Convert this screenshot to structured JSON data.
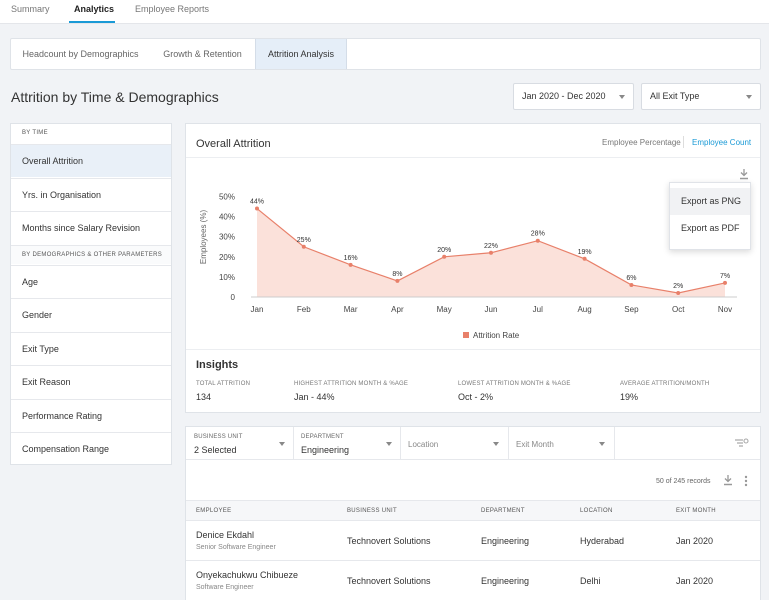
{
  "top_tabs": [
    {
      "label": "Summary"
    },
    {
      "label": "Analytics",
      "active": true
    },
    {
      "label": "Employee Reports"
    }
  ],
  "sub_tabs": [
    {
      "label": "Headcount by Demographics"
    },
    {
      "label": "Growth & Retention"
    },
    {
      "label": "Attrition Analysis",
      "active": true
    }
  ],
  "page_title": "Attrition by Time & Demographics",
  "filters": {
    "date_range": "Jan 2020 - Dec 2020",
    "exit_type": "All Exit Type"
  },
  "sidebar": {
    "section_time": "BY TIME",
    "time_items": [
      {
        "label": "Overall Attrition",
        "active": true
      },
      {
        "label": "Yrs. in Organisation"
      },
      {
        "label": "Months since Salary Revision"
      }
    ],
    "section_demo": "BY DEMOGRAPHICS & OTHER PARAMETERS",
    "demo_items": [
      {
        "label": "Age"
      },
      {
        "label": "Gender"
      },
      {
        "label": "Exit Type"
      },
      {
        "label": "Exit Reason"
      },
      {
        "label": "Performance Rating"
      },
      {
        "label": "Compensation Range"
      }
    ]
  },
  "chart_card": {
    "title": "Overall Attrition",
    "toggle_percentage": "Employee Percentage",
    "toggle_count": "Employee Count",
    "export_menu": [
      "Export as PNG",
      "Export as PDF"
    ],
    "icon": "download-icon"
  },
  "chart_data": {
    "type": "area",
    "x": [
      "Jan",
      "Feb",
      "Mar",
      "Apr",
      "May",
      "Jun",
      "Jul",
      "Aug",
      "Sep",
      "Oct",
      "Nov"
    ],
    "series": [
      {
        "name": "Attrition Rate",
        "values": [
          44,
          25,
          16,
          8,
          20,
          22,
          28,
          19,
          6,
          2,
          7
        ],
        "labels": [
          "44%",
          "25%",
          "16%",
          "8%",
          "20%",
          "22%",
          "28%",
          "19%",
          "6%",
          "2%",
          "7%"
        ]
      }
    ],
    "ylabel": "Employees (%)",
    "ylim": [
      0,
      50
    ],
    "yticks": [
      "0",
      "10%",
      "20%",
      "30%",
      "40%",
      "50%"
    ],
    "grid": false,
    "legend": "bottom-center",
    "colors": {
      "line": "#e8806a",
      "fill": "#fbe1da",
      "point": "#e8806a"
    }
  },
  "insights": {
    "title": "Insights",
    "items": [
      {
        "label": "TOTAL ATTRITION",
        "value": "134"
      },
      {
        "label": "HIGHEST ATTRITION MONTH & %AGE",
        "value": "Jan - 44%"
      },
      {
        "label": "LOWEST ATTRITION MONTH & %AGE",
        "value": "Oct - 2%"
      },
      {
        "label": "AVERAGE ATTRITION/MONTH",
        "value": "19%"
      }
    ]
  },
  "table_filters": {
    "business_unit": {
      "label": "BUSINESS UNIT",
      "value": "2 Selected"
    },
    "department": {
      "label": "DEPARTMENT",
      "value": "Engineering"
    },
    "location": {
      "placeholder": "Location"
    },
    "exit_month": {
      "placeholder": "Exit Month"
    },
    "filter_icon": "filter-settings-icon"
  },
  "records_text": "50 of 245 records",
  "table": {
    "columns": [
      "EMPLOYEE",
      "BUSINESS UNIT",
      "DEPARTMENT",
      "LOCATION",
      "EXIT MONTH"
    ],
    "rows": [
      {
        "name": "Denice Ekdahl",
        "title": "Senior Software Engineer",
        "unit": "Technovert Solutions",
        "department": "Engineering",
        "location": "Hyderabad",
        "exit_month": "Jan 2020"
      },
      {
        "name": "Onyekachukwu Chibueze",
        "title": "Software Engineer",
        "unit": "Technovert Solutions",
        "department": "Engineering",
        "location": "Delhi",
        "exit_month": "Jan 2020"
      }
    ]
  }
}
